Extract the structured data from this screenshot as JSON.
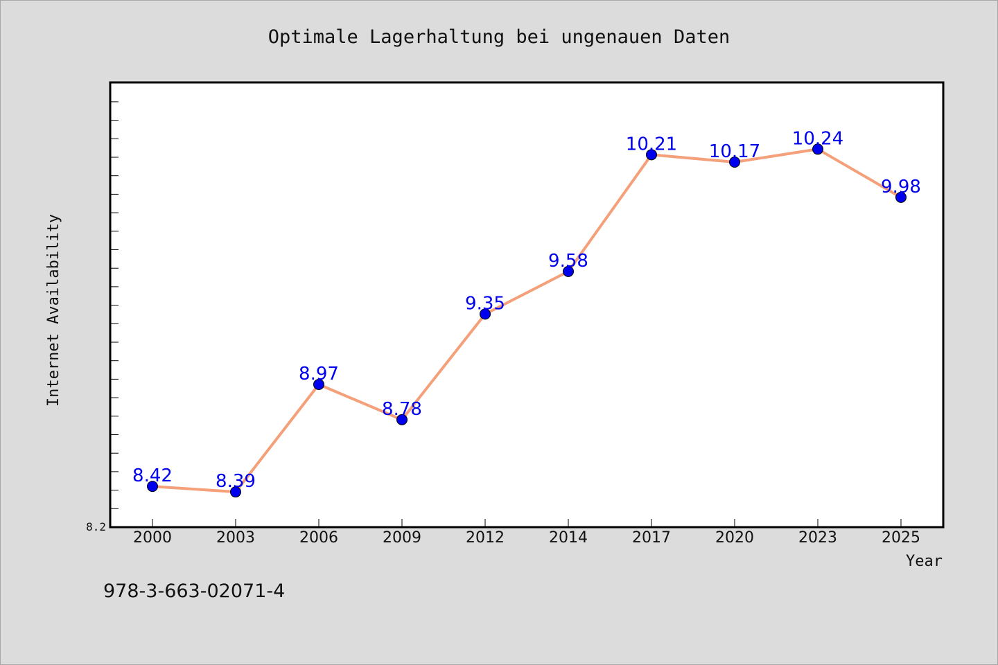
{
  "chart_data": {
    "type": "line",
    "title": "Optimale Lagerhaltung bei ungenauen Daten",
    "xlabel": "Year",
    "ylabel": "Internet Availability",
    "categories": [
      "2000",
      "2003",
      "2006",
      "2009",
      "2012",
      "2014",
      "2017",
      "2020",
      "2023",
      "2025"
    ],
    "series": [
      {
        "values": [
          8.42,
          8.39,
          8.97,
          8.78,
          9.35,
          9.58,
          10.21,
          10.17,
          10.24,
          9.98
        ],
        "data_labels": [
          "8.42",
          "8.39",
          "8.97",
          "8.78",
          "9.35",
          "9.58",
          "10.21",
          "10.17",
          "10.24",
          "9.98"
        ],
        "line_color": "#f4a07a",
        "marker_color": "#0000ee",
        "label_color": "#0000ee"
      }
    ],
    "ylim": [
      8.2,
      10.6
    ],
    "y_tick_labels": [
      "8.2"
    ],
    "grid": false,
    "legend": "none"
  },
  "footer": {
    "isbn": "978-3-663-02071-4"
  },
  "colors": {
    "background": "#dcdcdc",
    "plot_background": "#ffffff"
  }
}
